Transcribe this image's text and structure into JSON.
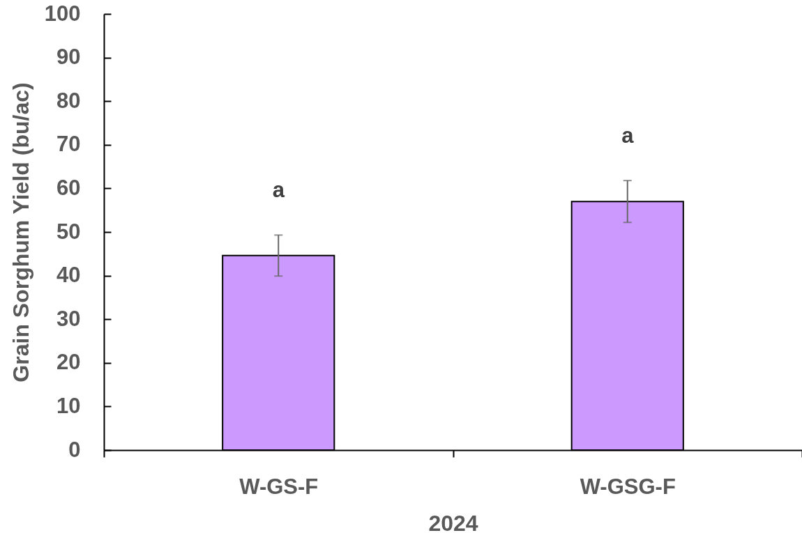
{
  "chart_data": {
    "type": "bar",
    "categories": [
      "W-GS-F",
      "W-GSG-F"
    ],
    "values": [
      44.6,
      57.0
    ],
    "errors": [
      4.7,
      4.8
    ],
    "color": "#cc99ff",
    "ylim": [
      0,
      100
    ],
    "yticks": [
      0,
      10,
      20,
      30,
      40,
      50,
      60,
      70,
      80,
      90,
      100
    ],
    "xlabel": "2024",
    "ylabel": "Grain Sorghum Yield (bu/ac)",
    "annotations": [
      "a",
      "a"
    ]
  }
}
